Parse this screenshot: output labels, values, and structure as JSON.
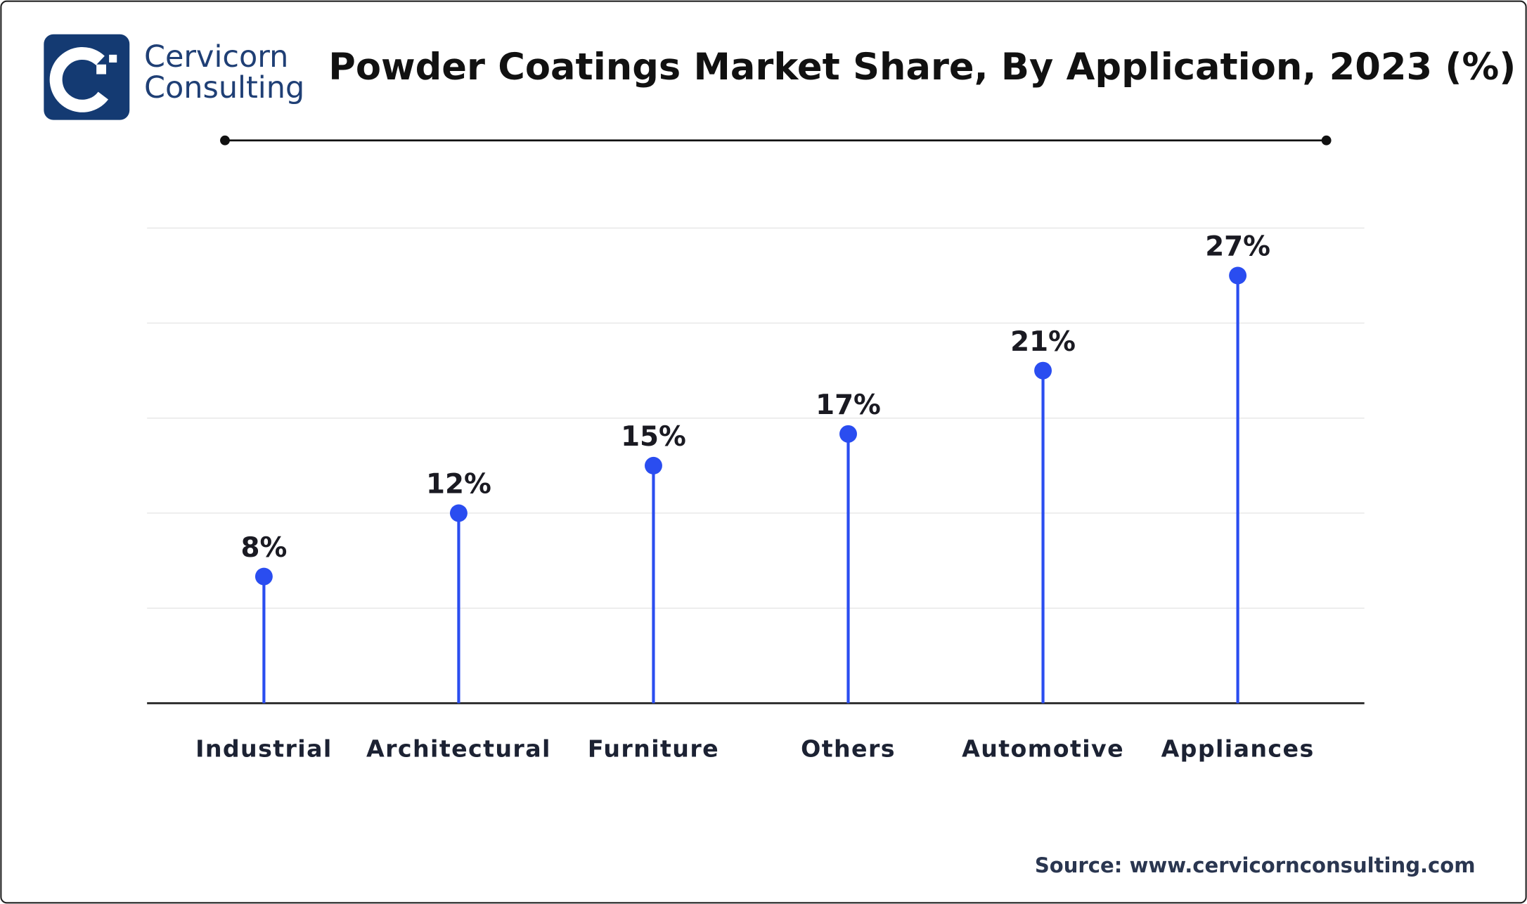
{
  "logo": {
    "line1": "Cervicorn",
    "line2": "Consulting"
  },
  "chart_data": {
    "type": "lollipop",
    "title": "Powder Coatings Market Share, By Application, 2023 (%)",
    "categories": [
      "Industrial",
      "Architectural",
      "Furniture",
      "Others",
      "Automotive",
      "Appliances"
    ],
    "values": [
      8,
      12,
      15,
      17,
      21,
      27
    ],
    "value_labels": [
      "8%",
      "12%",
      "15%",
      "17%",
      "21%",
      "27%"
    ],
    "color": "#2a4df0",
    "ylim": [
      0,
      30
    ],
    "yticks": [
      0,
      6,
      12,
      18,
      24,
      30
    ],
    "grid": true,
    "source": "Source: www.cervicornconsulting.com"
  }
}
